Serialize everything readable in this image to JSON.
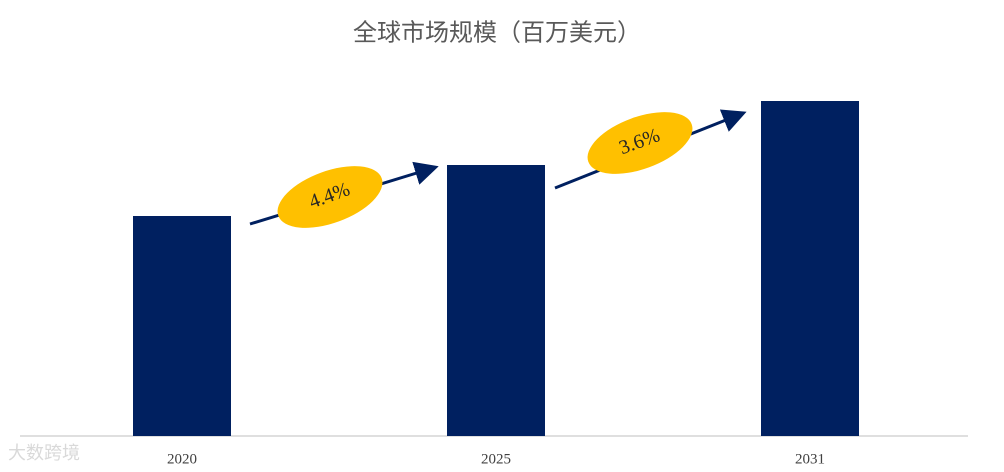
{
  "chart_data": {
    "type": "bar",
    "title": "全球市场规模（百万美元）",
    "categories": [
      "2020",
      "2025",
      "2031"
    ],
    "values": [
      220,
      271,
      335
    ],
    "color": "#002060",
    "annotations": [
      "4.4%",
      "3.6%"
    ],
    "watermark": "大数跨境"
  }
}
